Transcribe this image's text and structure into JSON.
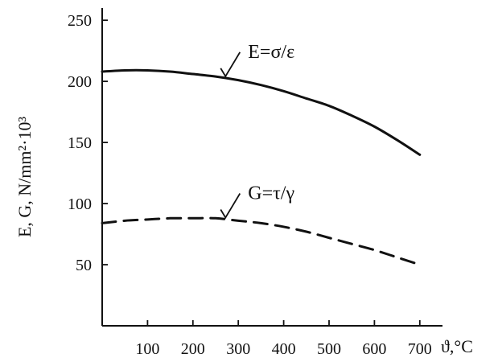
{
  "chart_data": {
    "type": "line",
    "xlabel": "ϑ,°C",
    "ylabel": "E, G, N/mm²·10³",
    "xlim": [
      0,
      750
    ],
    "ylim": [
      0,
      260
    ],
    "xticks": [
      "100",
      "200",
      "300",
      "400",
      "500",
      "600",
      "700"
    ],
    "yticks": [
      "50",
      "100",
      "150",
      "200",
      "250"
    ],
    "grid": false,
    "series": [
      {
        "name": "E=σ/ε",
        "line_style": "solid",
        "x": [
          0,
          50,
          100,
          150,
          200,
          250,
          300,
          350,
          400,
          450,
          500,
          550,
          600,
          650,
          700
        ],
        "y": [
          208,
          209,
          209,
          208,
          206,
          204,
          201,
          197,
          192,
          186,
          180,
          172,
          163,
          152,
          140
        ],
        "label_at": 270
      },
      {
        "name": "G=τ/γ",
        "line_style": "dashed",
        "x": [
          0,
          50,
          100,
          150,
          200,
          250,
          300,
          350,
          400,
          450,
          500,
          550,
          600,
          650,
          700
        ],
        "y": [
          84,
          86,
          87,
          88,
          88,
          88,
          86,
          84,
          81,
          77,
          72,
          67,
          62,
          56,
          50
        ],
        "label_at": 270
      }
    ],
    "style": {
      "line_color": "#111111",
      "background": "#ffffff"
    }
  }
}
